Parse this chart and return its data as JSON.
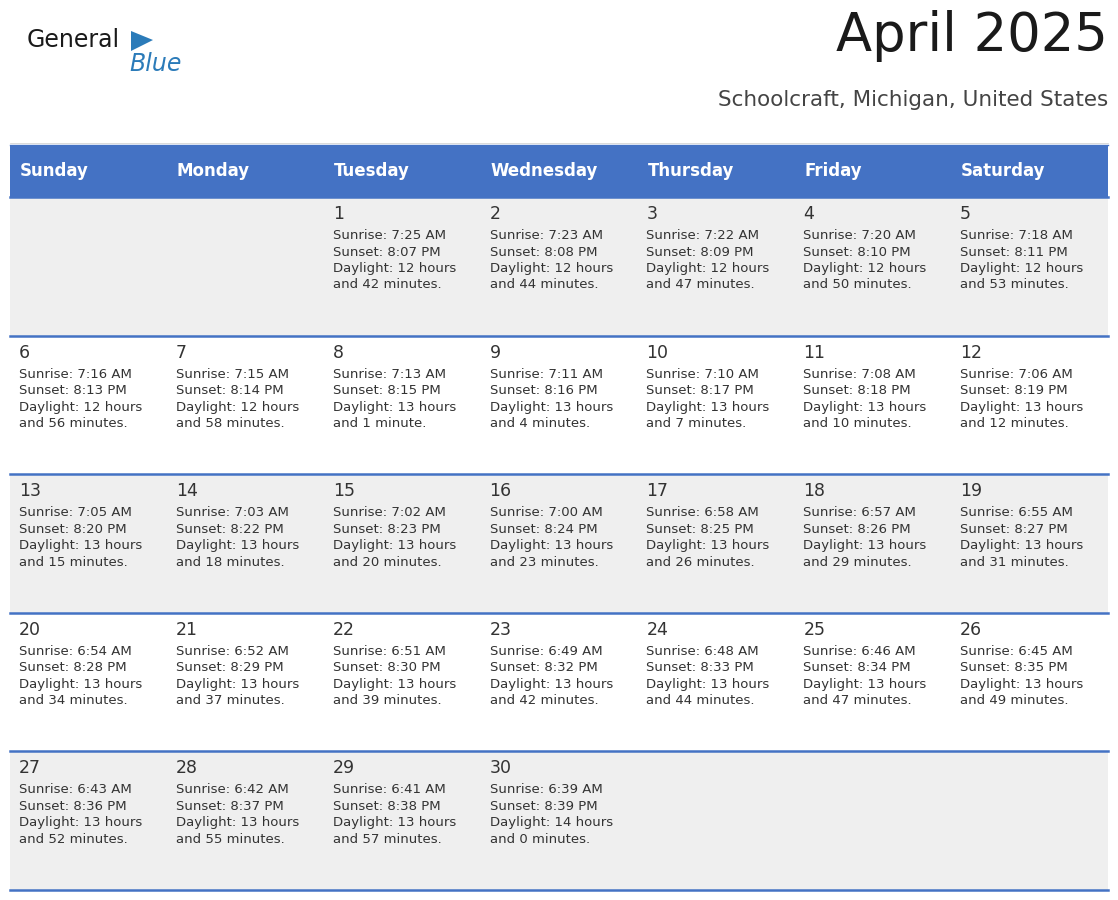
{
  "title": "April 2025",
  "subtitle": "Schoolcraft, Michigan, United States",
  "days_of_week": [
    "Sunday",
    "Monday",
    "Tuesday",
    "Wednesday",
    "Thursday",
    "Friday",
    "Saturday"
  ],
  "header_bg": "#4472c4",
  "header_text": "#ffffff",
  "row_bg_light": "#efefef",
  "row_bg_white": "#ffffff",
  "border_color": "#4472c4",
  "day_num_color": "#333333",
  "text_color": "#333333",
  "logo_black": "#1a1a1a",
  "logo_blue": "#2b7bb9",
  "weeks": [
    [
      {
        "day": null,
        "sunrise": null,
        "sunset": null,
        "daylight": null
      },
      {
        "day": null,
        "sunrise": null,
        "sunset": null,
        "daylight": null
      },
      {
        "day": 1,
        "sunrise": "7:25 AM",
        "sunset": "8:07 PM",
        "daylight": "12 hours and 42 minutes."
      },
      {
        "day": 2,
        "sunrise": "7:23 AM",
        "sunset": "8:08 PM",
        "daylight": "12 hours and 44 minutes."
      },
      {
        "day": 3,
        "sunrise": "7:22 AM",
        "sunset": "8:09 PM",
        "daylight": "12 hours and 47 minutes."
      },
      {
        "day": 4,
        "sunrise": "7:20 AM",
        "sunset": "8:10 PM",
        "daylight": "12 hours and 50 minutes."
      },
      {
        "day": 5,
        "sunrise": "7:18 AM",
        "sunset": "8:11 PM",
        "daylight": "12 hours and 53 minutes."
      }
    ],
    [
      {
        "day": 6,
        "sunrise": "7:16 AM",
        "sunset": "8:13 PM",
        "daylight": "12 hours and 56 minutes."
      },
      {
        "day": 7,
        "sunrise": "7:15 AM",
        "sunset": "8:14 PM",
        "daylight": "12 hours and 58 minutes."
      },
      {
        "day": 8,
        "sunrise": "7:13 AM",
        "sunset": "8:15 PM",
        "daylight": "13 hours and 1 minute."
      },
      {
        "day": 9,
        "sunrise": "7:11 AM",
        "sunset": "8:16 PM",
        "daylight": "13 hours and 4 minutes."
      },
      {
        "day": 10,
        "sunrise": "7:10 AM",
        "sunset": "8:17 PM",
        "daylight": "13 hours and 7 minutes."
      },
      {
        "day": 11,
        "sunrise": "7:08 AM",
        "sunset": "8:18 PM",
        "daylight": "13 hours and 10 minutes."
      },
      {
        "day": 12,
        "sunrise": "7:06 AM",
        "sunset": "8:19 PM",
        "daylight": "13 hours and 12 minutes."
      }
    ],
    [
      {
        "day": 13,
        "sunrise": "7:05 AM",
        "sunset": "8:20 PM",
        "daylight": "13 hours and 15 minutes."
      },
      {
        "day": 14,
        "sunrise": "7:03 AM",
        "sunset": "8:22 PM",
        "daylight": "13 hours and 18 minutes."
      },
      {
        "day": 15,
        "sunrise": "7:02 AM",
        "sunset": "8:23 PM",
        "daylight": "13 hours and 20 minutes."
      },
      {
        "day": 16,
        "sunrise": "7:00 AM",
        "sunset": "8:24 PM",
        "daylight": "13 hours and 23 minutes."
      },
      {
        "day": 17,
        "sunrise": "6:58 AM",
        "sunset": "8:25 PM",
        "daylight": "13 hours and 26 minutes."
      },
      {
        "day": 18,
        "sunrise": "6:57 AM",
        "sunset": "8:26 PM",
        "daylight": "13 hours and 29 minutes."
      },
      {
        "day": 19,
        "sunrise": "6:55 AM",
        "sunset": "8:27 PM",
        "daylight": "13 hours and 31 minutes."
      }
    ],
    [
      {
        "day": 20,
        "sunrise": "6:54 AM",
        "sunset": "8:28 PM",
        "daylight": "13 hours and 34 minutes."
      },
      {
        "day": 21,
        "sunrise": "6:52 AM",
        "sunset": "8:29 PM",
        "daylight": "13 hours and 37 minutes."
      },
      {
        "day": 22,
        "sunrise": "6:51 AM",
        "sunset": "8:30 PM",
        "daylight": "13 hours and 39 minutes."
      },
      {
        "day": 23,
        "sunrise": "6:49 AM",
        "sunset": "8:32 PM",
        "daylight": "13 hours and 42 minutes."
      },
      {
        "day": 24,
        "sunrise": "6:48 AM",
        "sunset": "8:33 PM",
        "daylight": "13 hours and 44 minutes."
      },
      {
        "day": 25,
        "sunrise": "6:46 AM",
        "sunset": "8:34 PM",
        "daylight": "13 hours and 47 minutes."
      },
      {
        "day": 26,
        "sunrise": "6:45 AM",
        "sunset": "8:35 PM",
        "daylight": "13 hours and 49 minutes."
      }
    ],
    [
      {
        "day": 27,
        "sunrise": "6:43 AM",
        "sunset": "8:36 PM",
        "daylight": "13 hours and 52 minutes."
      },
      {
        "day": 28,
        "sunrise": "6:42 AM",
        "sunset": "8:37 PM",
        "daylight": "13 hours and 55 minutes."
      },
      {
        "day": 29,
        "sunrise": "6:41 AM",
        "sunset": "8:38 PM",
        "daylight": "13 hours and 57 minutes."
      },
      {
        "day": 30,
        "sunrise": "6:39 AM",
        "sunset": "8:39 PM",
        "daylight": "14 hours and 0 minutes."
      },
      {
        "day": null,
        "sunrise": null,
        "sunset": null,
        "daylight": null
      },
      {
        "day": null,
        "sunrise": null,
        "sunset": null,
        "daylight": null
      },
      {
        "day": null,
        "sunrise": null,
        "sunset": null,
        "daylight": null
      }
    ]
  ]
}
